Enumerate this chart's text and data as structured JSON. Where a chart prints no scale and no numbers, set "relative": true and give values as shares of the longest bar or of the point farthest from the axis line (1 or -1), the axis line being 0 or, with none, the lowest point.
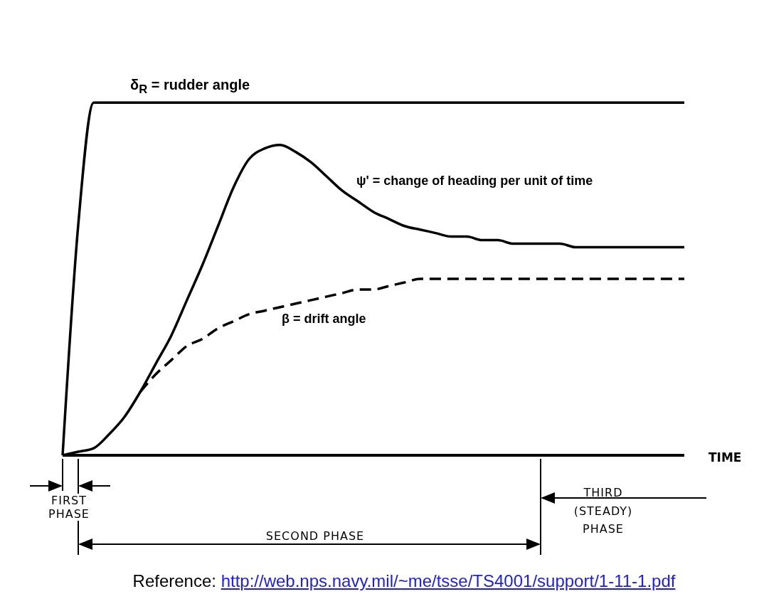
{
  "chart_data": {
    "type": "line",
    "relative": true,
    "xlabel": "TIME",
    "marker": "none",
    "line_style": "solid",
    "categories": [
      null,
      null,
      null,
      null,
      null,
      null,
      null,
      null,
      null,
      null,
      null,
      null,
      null,
      null,
      null,
      null,
      null,
      null,
      null,
      null,
      null,
      null,
      null,
      null,
      null,
      null,
      null,
      null,
      null,
      null,
      null,
      null,
      null,
      null,
      null,
      null,
      null,
      null,
      null,
      null,
      null
    ],
    "series": [
      {
        "name": "δ$_{R}$ = rudder angle",
        "color": "#000000",
        "values": [
          0,
          0.65,
          1,
          1,
          1,
          1,
          1,
          1,
          1,
          1,
          1,
          1,
          1,
          1,
          1,
          1,
          1,
          1,
          1,
          1,
          1,
          1,
          1,
          1,
          1,
          1,
          1,
          1,
          1,
          1,
          1,
          1,
          1,
          1,
          1,
          1,
          1,
          1,
          1,
          1,
          1
        ]
      },
      {
        "name": "ψ' = change of heading per unit of time",
        "color": "#000000",
        "values": [
          0,
          0.01,
          0.02,
          0.06,
          0.11,
          0.18,
          0.26,
          0.34,
          0.44,
          0.54,
          0.65,
          0.76,
          0.84,
          0.87,
          0.88,
          0.86,
          0.83,
          0.79,
          0.75,
          0.72,
          0.69,
          0.67,
          0.65,
          0.64,
          0.63,
          0.62,
          0.62,
          0.61,
          0.61,
          0.6,
          0.6,
          0.6,
          0.6,
          0.59,
          0.59,
          0.59,
          0.59,
          0.59,
          0.59,
          0.59,
          0.59
        ]
      },
      {
        "name": "β = drift angle",
        "color": "#000000",
        "line_style": "dashed",
        "values": [
          null,
          null,
          null,
          null,
          null,
          0.18,
          0.23,
          0.27,
          0.31,
          0.33,
          0.36,
          0.38,
          0.4,
          0.41,
          0.42,
          0.43,
          0.44,
          0.45,
          0.46,
          0.47,
          0.47,
          0.48,
          0.49,
          0.5,
          0.5,
          0.5,
          0.5,
          0.5,
          0.5,
          0.5,
          0.5,
          0.5,
          0.5,
          0.5,
          0.5,
          0.5,
          0.5,
          0.5,
          0.5,
          0.5,
          0.5
        ]
      }
    ],
    "annotations": [
      "FIRST PHASE",
      "SECOND PHASE",
      "THIRD (STEADY) PHASE",
      "Reference: http://web.nps.navy.mil/~me/tsse/TS4001/support/1-11-1.pdf"
    ]
  }
}
